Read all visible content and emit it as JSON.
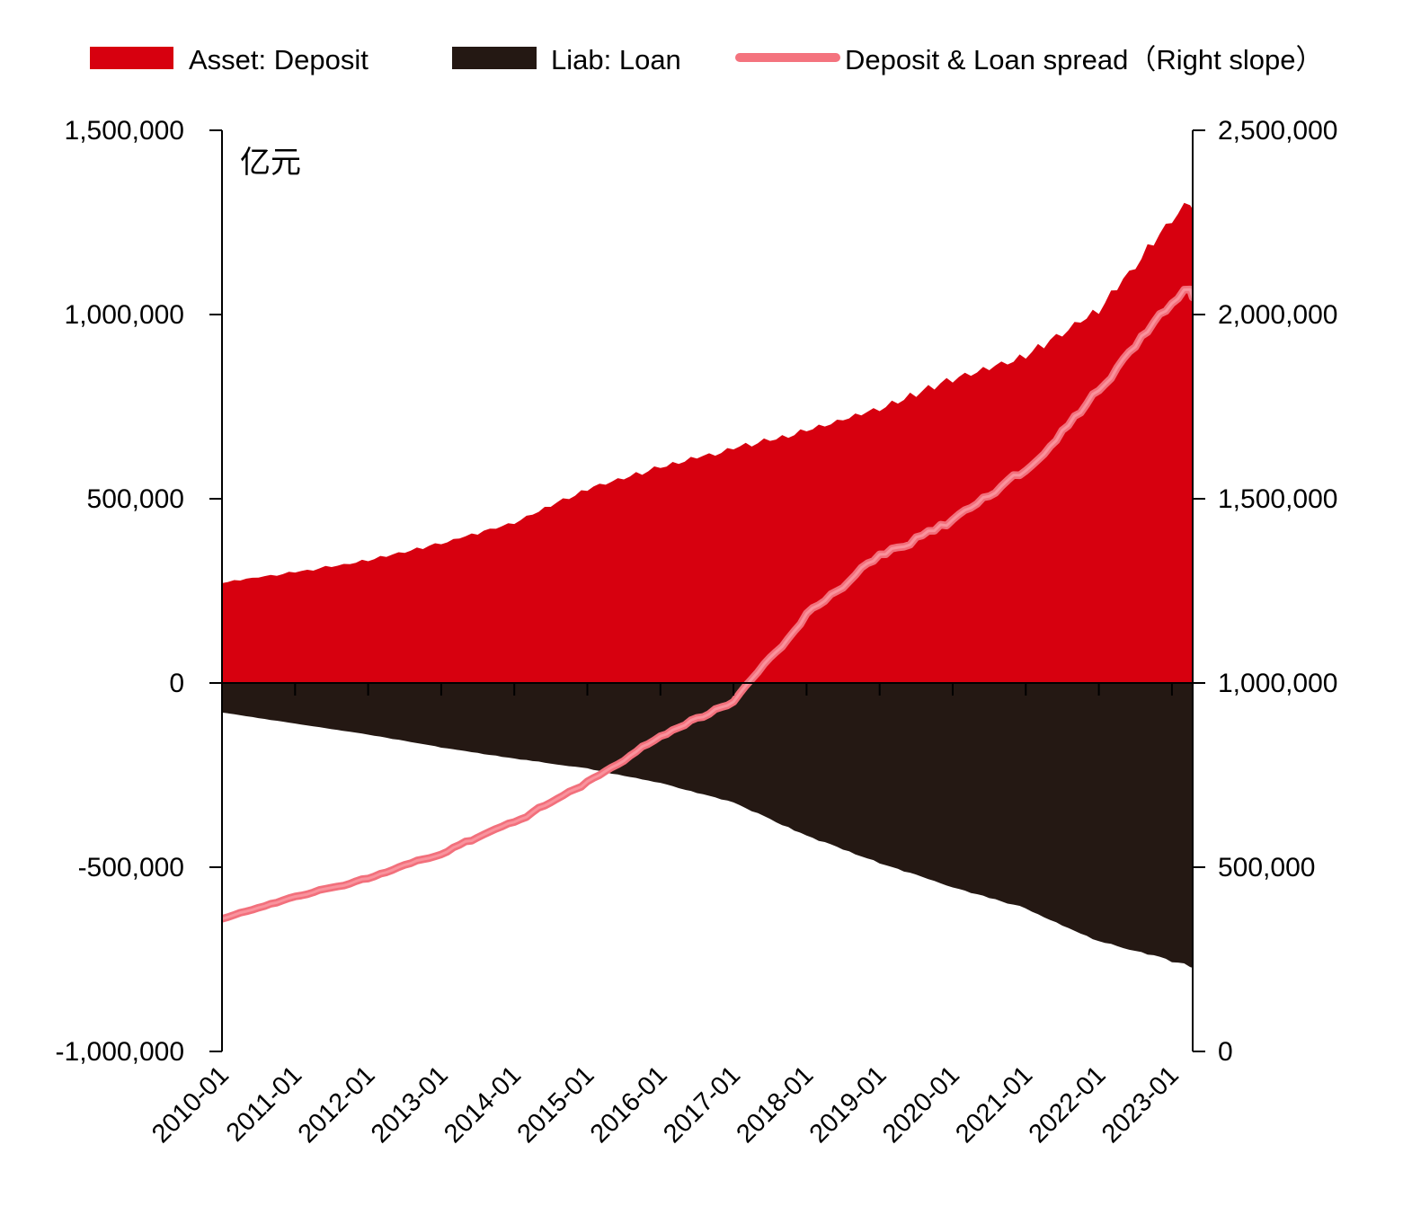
{
  "legend": {
    "items": [
      {
        "label": "Asset: Deposit",
        "swatch": "rect",
        "color": "#d7000f"
      },
      {
        "label": "Liab: Loan",
        "swatch": "rect",
        "color": "#241813"
      },
      {
        "label": "Deposit & Loan spread（Right slope）",
        "swatch": "line",
        "color": "#f4737e"
      }
    ]
  },
  "chart_data": {
    "type": "area",
    "subtype": "positive/negative mirrored areas with line on secondary axis",
    "x_unit": "month",
    "x_start": 2010.0,
    "x_end": 2023.3333,
    "anchor_years": [
      2010,
      2011,
      2012,
      2013,
      2014,
      2015,
      2016,
      2017,
      2018,
      2019,
      2020,
      2021,
      2022,
      2023,
      2023.25,
      2023.3333
    ],
    "series": [
      {
        "name": "Asset: Deposit",
        "axis": "left",
        "style": "area",
        "color": "#d7000f",
        "anchor_values": [
          272000,
          300000,
          332000,
          378000,
          435000,
          525000,
          585000,
          634000,
          683000,
          744000,
          822000,
          885000,
          1010000,
          1256000,
          1300000,
          1283000
        ]
      },
      {
        "name": "Liab: Loan",
        "axis": "left",
        "style": "area",
        "color": "#241813",
        "anchor_values": [
          -80000,
          -110000,
          -140000,
          -175000,
          -205000,
          -232000,
          -272000,
          -324000,
          -415000,
          -488000,
          -554000,
          -612000,
          -700000,
          -755000,
          -768000,
          -772000
        ]
      },
      {
        "name": "Deposit & Loan spread",
        "axis": "right",
        "style": "line",
        "color": "#f4737e",
        "anchor_values": [
          360000,
          420000,
          468000,
          540000,
          620000,
          730000,
          858000,
          950000,
          1185000,
          1350000,
          1440000,
          1580000,
          1790000,
          2030000,
          2075000,
          2050000
        ]
      }
    ],
    "left_axis": {
      "unit": "亿元",
      "min": -1000000,
      "max": 1500000,
      "tick_step": 500000,
      "tick_values": [
        1500000,
        1000000,
        500000,
        0,
        -500000,
        -1000000
      ],
      "tick_labels": [
        "1,500,000",
        "1,000,000",
        "500,000",
        "0",
        "-500,000",
        "-1,000,000"
      ]
    },
    "right_axis": {
      "min": 0,
      "max": 2500000,
      "tick_step": 500000,
      "tick_values": [
        2500000,
        2000000,
        1500000,
        1000000,
        500000,
        0
      ],
      "tick_labels": [
        "2,500,000",
        "2,000,000",
        "1,500,000",
        "1,000,000",
        "500,000",
        "0"
      ]
    },
    "x_tick_labels": [
      "2010-01",
      "2011-01",
      "2012-01",
      "2013-01",
      "2014-01",
      "2015-01",
      "2016-01",
      "2017-01",
      "2018-01",
      "2019-01",
      "2020-01",
      "2021-01",
      "2022-01",
      "2023-01"
    ],
    "grid": "off",
    "legend_position": "top"
  }
}
